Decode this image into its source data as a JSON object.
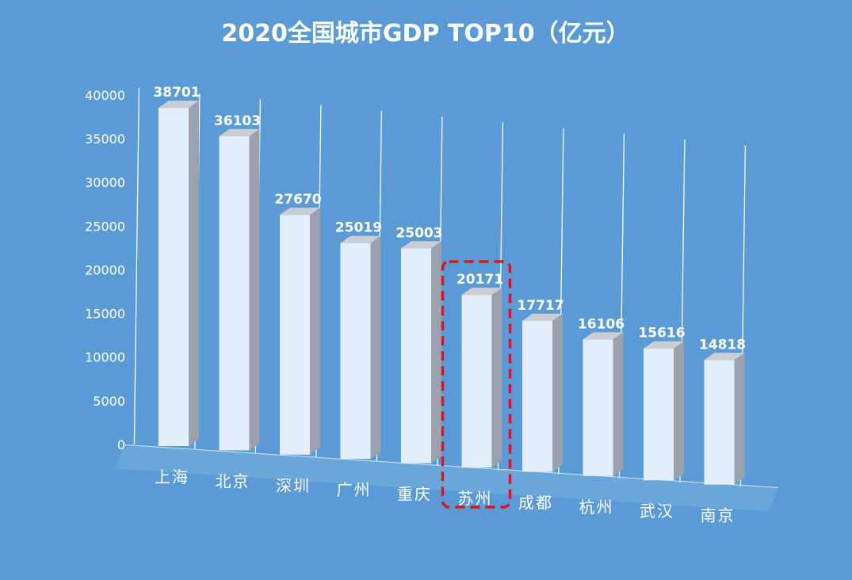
{
  "chart_data": {
    "type": "bar",
    "title": "2020全国城市GDP  TOP10（亿元）",
    "categories": [
      "上海",
      "北京",
      "深圳",
      "广州",
      "重庆",
      "苏州",
      "成都",
      "杭州",
      "武汉",
      "南京"
    ],
    "values": [
      38701,
      36103,
      27670,
      25019,
      25003,
      20171,
      17717,
      16106,
      15616,
      14818
    ],
    "y_ticks": [
      "0",
      "5000",
      "10000",
      "15000",
      "20000",
      "25000",
      "30000",
      "35000",
      "40000"
    ],
    "ylim": [
      0,
      40000
    ],
    "highlight_category": "苏州",
    "grid": true,
    "style": "3d-column",
    "colors": {
      "background": "#5b9bd5",
      "bar_front": "#e3eefb",
      "bar_side": "#9aa3ad",
      "bar_top": "#c9ced4",
      "highlight": "#e0141e"
    }
  }
}
